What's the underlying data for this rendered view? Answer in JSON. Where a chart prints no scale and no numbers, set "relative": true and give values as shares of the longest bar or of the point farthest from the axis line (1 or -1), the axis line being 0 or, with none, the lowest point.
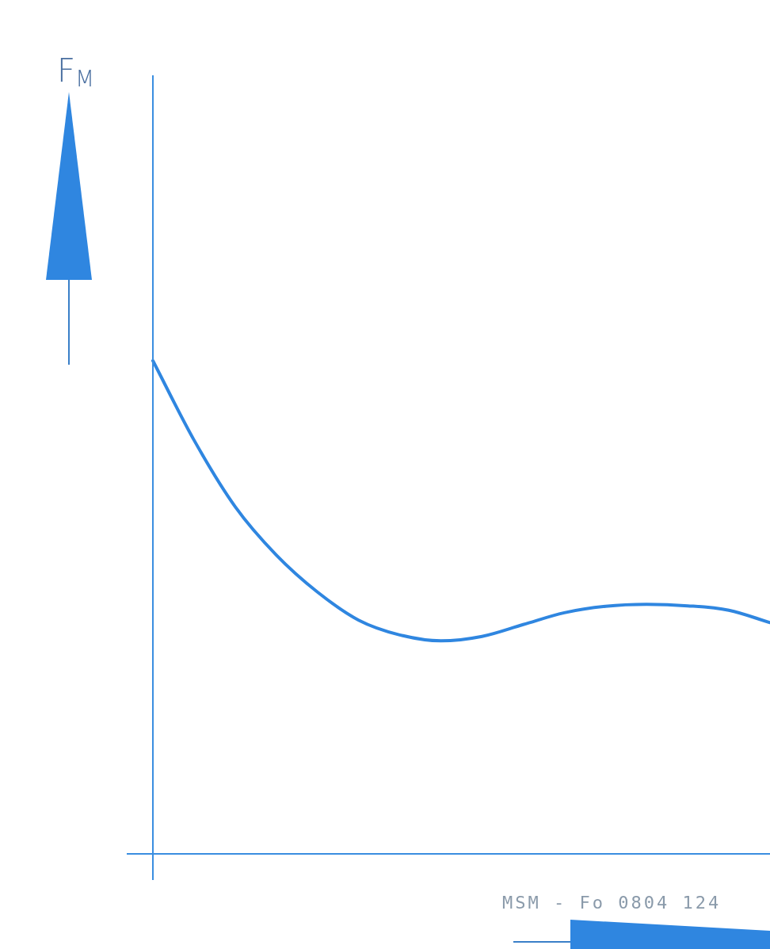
{
  "chart_data": {
    "type": "line",
    "relative": true,
    "categories": [
      null,
      null,
      null,
      null,
      null,
      null,
      null,
      null,
      null,
      null,
      null,
      null,
      null,
      null,
      null,
      null
    ],
    "series": [
      {
        "color": "#2f86e0",
        "values": [
          1.0,
          0.839,
          0.704,
          0.606,
          0.531,
          0.474,
          0.444,
          0.432,
          0.441,
          0.465,
          0.489,
          0.502,
          0.506,
          0.503,
          0.494,
          0.469
        ]
      }
    ],
    "annotations": [
      "F$_{M}$",
      "MSM - Fo 0804 124"
    ],
    "marker": "none",
    "line_style": "solid"
  }
}
